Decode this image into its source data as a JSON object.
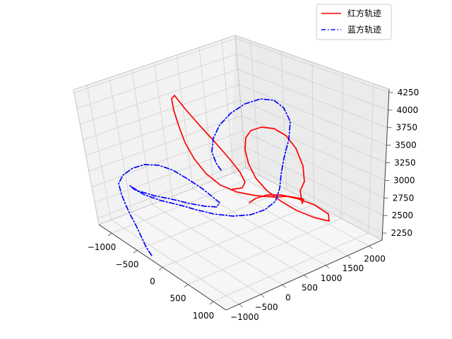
{
  "chart_data": {
    "type": "line",
    "title": "",
    "xlabel": "",
    "ylabel": "",
    "zlabel": "",
    "xlim": [
      -1250,
      1250
    ],
    "ylim": [
      -1300,
      2300
    ],
    "zlim": [
      2150,
      4300
    ],
    "x_ticks": [
      "−1000",
      "−500",
      "0",
      "500",
      "1000"
    ],
    "y_ticks": [
      "−1000",
      "−500",
      "0",
      "500",
      "1000",
      "1500",
      "2000"
    ],
    "z_ticks": [
      "2250",
      "2500",
      "2750",
      "3000",
      "3250",
      "3500",
      "3750",
      "4000",
      "4250"
    ],
    "grid": true,
    "legend_position": "top-right",
    "series": [
      {
        "name": "红方轨迹",
        "color": "#ff0000",
        "style": "solid",
        "path": [
          [
            329,
            268
          ],
          [
            343,
            266
          ],
          [
            347,
            258
          ],
          [
            340,
            244
          ],
          [
            325,
            225
          ],
          [
            305,
            202
          ],
          [
            283,
            178
          ],
          [
            262,
            154
          ],
          [
            247,
            135
          ],
          [
            243,
            140
          ],
          [
            246,
            156
          ],
          [
            253,
            178
          ],
          [
            262,
            202
          ],
          [
            275,
            225
          ],
          [
            292,
            246
          ],
          [
            312,
            262
          ],
          [
            336,
            272
          ],
          [
            362,
            277
          ],
          [
            388,
            279
          ],
          [
            408,
            278
          ],
          [
            420,
            280
          ],
          [
            430,
            282
          ],
          [
            428,
            288
          ],
          [
            425,
            270
          ],
          [
            431,
            257
          ],
          [
            429,
            235
          ],
          [
            419,
            210
          ],
          [
            405,
            192
          ],
          [
            388,
            182
          ],
          [
            370,
            180
          ],
          [
            355,
            185
          ],
          [
            348,
            195
          ],
          [
            347,
            212
          ],
          [
            352,
            232
          ],
          [
            362,
            252
          ],
          [
            378,
            270
          ],
          [
            398,
            285
          ],
          [
            420,
            298
          ],
          [
            445,
            308
          ],
          [
            466,
            313
          ],
          [
            465,
            303
          ],
          [
            445,
            290
          ],
          [
            420,
            281
          ],
          [
            398,
            276
          ],
          [
            378,
            276
          ],
          [
            362,
            281
          ],
          [
            353,
            287
          ]
        ]
      },
      {
        "name": "蓝方轨迹",
        "color": "#0000ff",
        "style": "dashdot",
        "path": [
          [
            313,
            241
          ],
          [
            306,
            231
          ],
          [
            300,
            215
          ],
          [
            302,
            196
          ],
          [
            311,
            177
          ],
          [
            327,
            160
          ],
          [
            347,
            147
          ],
          [
            369,
            140
          ],
          [
            388,
            142
          ],
          [
            402,
            153
          ],
          [
            411,
            172
          ],
          [
            409,
            197
          ],
          [
            402,
            224
          ],
          [
            398,
            247
          ],
          [
            396,
            267
          ],
          [
            390,
            285
          ],
          [
            375,
            297
          ],
          [
            355,
            304
          ],
          [
            330,
            306
          ],
          [
            303,
            303
          ],
          [
            278,
            297
          ],
          [
            253,
            290
          ],
          [
            228,
            284
          ],
          [
            205,
            276
          ],
          [
            190,
            268
          ],
          [
            184,
            263
          ],
          [
            195,
            270
          ],
          [
            218,
            277
          ],
          [
            243,
            282
          ],
          [
            268,
            288
          ],
          [
            290,
            292
          ],
          [
            307,
            293
          ],
          [
            311,
            287
          ],
          [
            300,
            278
          ],
          [
            285,
            266
          ],
          [
            265,
            253
          ],
          [
            245,
            241
          ],
          [
            225,
            234
          ],
          [
            205,
            233
          ],
          [
            188,
            238
          ],
          [
            174,
            248
          ],
          [
            168,
            260
          ],
          [
            172,
            275
          ],
          [
            178,
            290
          ],
          [
            185,
            305
          ],
          [
            193,
            320
          ],
          [
            200,
            335
          ],
          [
            207,
            350
          ],
          [
            215,
            362
          ]
        ]
      }
    ]
  }
}
